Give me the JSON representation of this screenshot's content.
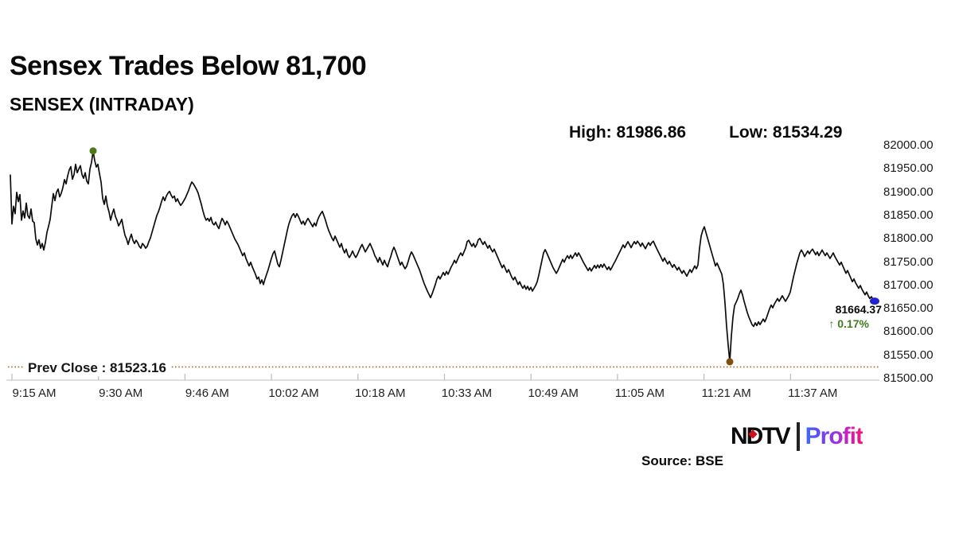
{
  "header": {
    "title": "Sensex Trades Below 81,700",
    "subtitle": "SENSEX (INTRADAY)",
    "high_label": "High: 81986.86",
    "low_label": "Low: 81534.29"
  },
  "annotations": {
    "prev_close_label": "Prev Close : 81523.16",
    "last_price": "81664.37",
    "last_change": "↑ 0.17%",
    "change_color": "#3e7d1d"
  },
  "footer": {
    "logo_ndtv": "NDTV",
    "logo_profit": "Profit",
    "source": "Source: BSE"
  },
  "colors": {
    "line": "#0d0d0d",
    "high_dot": "#4e7a15",
    "low_dot": "#7f4f10",
    "last_dot": "#2222cf",
    "prev_close_line": "#b06a2a",
    "axis": "#cccccc",
    "tick": "#bbbbbb",
    "ndtv_red": "#d40f1c",
    "logo_sep": "#222222"
  },
  "chart_data": {
    "type": "line",
    "title": "SENSEX (INTRADAY)",
    "xlabel": "",
    "ylabel": "",
    "x_tick_labels": [
      "9:15 AM",
      "9:30 AM",
      "9:46 AM",
      "10:02 AM",
      "10:18 AM",
      "10:33 AM",
      "10:49 AM",
      "11:05 AM",
      "11:21 AM",
      "11:37 AM"
    ],
    "y_tick_labels": [
      "82000.00",
      "81950.00",
      "81900.00",
      "81850.00",
      "81800.00",
      "81750.00",
      "81700.00",
      "81650.00",
      "81600.00",
      "81550.00",
      "81500.00"
    ],
    "ylim": [
      81500,
      82000
    ],
    "grid": false,
    "legend": "none",
    "x_start_time": "9:15 AM",
    "x_end_time": "11:52 AM",
    "high": 81986.86,
    "low": 81534.29,
    "prev_close": 81523.16,
    "last": 81664.37,
    "change_pct": 0.17,
    "series": [
      {
        "name": "SENSEX",
        "note": "values evenly spaced in time from market open 9:15 AM to ~11:52 AM",
        "values": [
          81935,
          81830,
          81868,
          81852,
          81898,
          81878,
          81893,
          81838,
          81858,
          81843,
          81875,
          81848,
          81842,
          81862,
          81836,
          81833,
          81798,
          81785,
          81796,
          81778,
          81788,
          81774,
          81790,
          81812,
          81825,
          81840,
          81868,
          81895,
          81880,
          81898,
          81905,
          81888,
          81896,
          81908,
          81925,
          81916,
          81933,
          81946,
          81953,
          81926,
          81936,
          81958,
          81940,
          81948,
          81955,
          81936,
          81928,
          81940,
          81922,
          81916,
          81948,
          81962,
          81986.86,
          81966,
          81952,
          81958,
          81938,
          81920,
          81885,
          81872,
          81890,
          81868,
          81856,
          81838,
          81852,
          81862,
          81846,
          81838,
          81826,
          81832,
          81840,
          81822,
          81806,
          81798,
          81786,
          81798,
          81808,
          81795,
          81788,
          81795,
          81790,
          81782,
          81778,
          81788,
          81784,
          81778,
          81782,
          81792,
          81800,
          81812,
          81824,
          81836,
          81848,
          81856,
          81866,
          81878,
          81888,
          81880,
          81890,
          81896,
          81900,
          81892,
          81886,
          81890,
          81878,
          81884,
          81876,
          81870,
          81874,
          81880,
          81886,
          81894,
          81902,
          81912,
          81920,
          81916,
          81910,
          81904,
          81896,
          81884,
          81872,
          81858,
          81846,
          81838,
          81842,
          81836,
          81844,
          81832,
          81828,
          81834,
          81826,
          81820,
          81832,
          81842,
          81836,
          81828,
          81836,
          81830,
          81822,
          81814,
          81806,
          81798,
          81792,
          81786,
          81778,
          81770,
          81762,
          81768,
          81756,
          81748,
          81740,
          81748,
          81738,
          81730,
          81722,
          81712,
          81716,
          81702,
          81710,
          81700,
          81712,
          81722,
          81732,
          81744,
          81756,
          81766,
          81772,
          81758,
          81744,
          81738,
          81752,
          81768,
          81784,
          81800,
          81816,
          81830,
          81840,
          81848,
          81852,
          81844,
          81852,
          81846,
          81838,
          81830,
          81836,
          81828,
          81836,
          81842,
          81836,
          81830,
          81824,
          81832,
          81826,
          81838,
          81846,
          81852,
          81857,
          81848,
          81838,
          81826,
          81816,
          81808,
          81800,
          81794,
          81804,
          81796,
          81788,
          81780,
          81788,
          81776,
          81768,
          81776,
          81764,
          81758,
          81764,
          81772,
          81764,
          81758,
          81764,
          81772,
          81780,
          81786,
          81778,
          81770,
          81776,
          81782,
          81788,
          81780,
          81772,
          81762,
          81756,
          81748,
          81758,
          81750,
          81742,
          81752,
          81744,
          81738,
          81750,
          81760,
          81772,
          81780,
          81772,
          81762,
          81752,
          81742,
          81748,
          81740,
          81734,
          81739,
          81750,
          81762,
          81770,
          81764,
          81756,
          81748,
          81740,
          81732,
          81722,
          81712,
          81702,
          81694,
          81686,
          81679,
          81672,
          81680,
          81690,
          81700,
          81712,
          81718,
          81712,
          81719,
          81726,
          81720,
          81728,
          81722,
          81730,
          81738,
          81744,
          81752,
          81746,
          81754,
          81762,
          81768,
          81762,
          81770,
          81778,
          81792,
          81795,
          81788,
          81782,
          81788,
          81780,
          81786,
          81796,
          81799,
          81792,
          81786,
          81792,
          81785,
          81778,
          81784,
          81776,
          81770,
          81776,
          81768,
          81760,
          81752,
          81744,
          81736,
          81742,
          81734,
          81726,
          81732,
          81724,
          81716,
          81710,
          81716,
          81708,
          81700,
          81706,
          81698,
          81692,
          81698,
          81690,
          81696,
          81688,
          81694,
          81686,
          81692,
          81698,
          81706,
          81720,
          81736,
          81752,
          81768,
          81775,
          81768,
          81760,
          81752,
          81744,
          81736,
          81730,
          81724,
          81730,
          81738,
          81746,
          81754,
          81748,
          81756,
          81762,
          81756,
          81763,
          81756,
          81762,
          81768,
          81761,
          81768,
          81762,
          81755,
          81748,
          81742,
          81736,
          81730,
          81736,
          81729,
          81735,
          81741,
          81735,
          81742,
          81736,
          81743,
          81737,
          81744,
          81738,
          81732,
          81738,
          81731,
          81737,
          81744,
          81750,
          81757,
          81764,
          81771,
          81778,
          81785,
          81779,
          81786,
          81792,
          81786,
          81779,
          81786,
          81792,
          81787,
          81793,
          81788,
          81782,
          81789,
          81783,
          81777,
          81784,
          81790,
          81784,
          81790,
          81793,
          81785,
          81778,
          81771,
          81764,
          81757,
          81750,
          81757,
          81750,
          81744,
          81750,
          81743,
          81737,
          81743,
          81737,
          81731,
          81737,
          81730,
          81724,
          81730,
          81724,
          81718,
          81725,
          81732,
          81726,
          81733,
          81740,
          81734,
          81742,
          81778,
          81804,
          81816,
          81824,
          81812,
          81800,
          81788,
          81776,
          81764,
          81752,
          81740,
          81746,
          81738,
          81730,
          81722,
          81700,
          81660,
          81610,
          81570,
          81534.29,
          81590,
          81630,
          81655,
          81662,
          81670,
          81680,
          81688,
          81678,
          81664,
          81652,
          81640,
          81630,
          81622,
          81614,
          81610,
          81618,
          81612,
          81620,
          81614,
          81620,
          81626,
          81620,
          81628,
          81638,
          81648,
          81656,
          81650,
          81658,
          81664,
          81670,
          81664,
          81670,
          81676,
          81670,
          81664,
          81670,
          81676,
          81684,
          81700,
          81716,
          81730,
          81744,
          81756,
          81768,
          81774,
          81768,
          81760,
          81766,
          81772,
          81766,
          81772,
          81776,
          81770,
          81764,
          81770,
          81762,
          81768,
          81774,
          81768,
          81762,
          81768,
          81762,
          81756,
          81762,
          81768,
          81760,
          81754,
          81748,
          81742,
          81748,
          81740,
          81732,
          81724,
          81730,
          81722,
          81714,
          81706,
          81712,
          81704,
          81698,
          81692,
          81698,
          81690,
          81684,
          81678,
          81684,
          81676,
          81670,
          81674,
          81668,
          81666,
          81664.37
        ]
      }
    ],
    "markers": [
      {
        "name": "day-high",
        "value": 81986.86,
        "at": "max"
      },
      {
        "name": "day-low",
        "value": 81534.29,
        "at": "min"
      },
      {
        "name": "last-trade",
        "value": 81664.37,
        "at": "last"
      }
    ]
  }
}
